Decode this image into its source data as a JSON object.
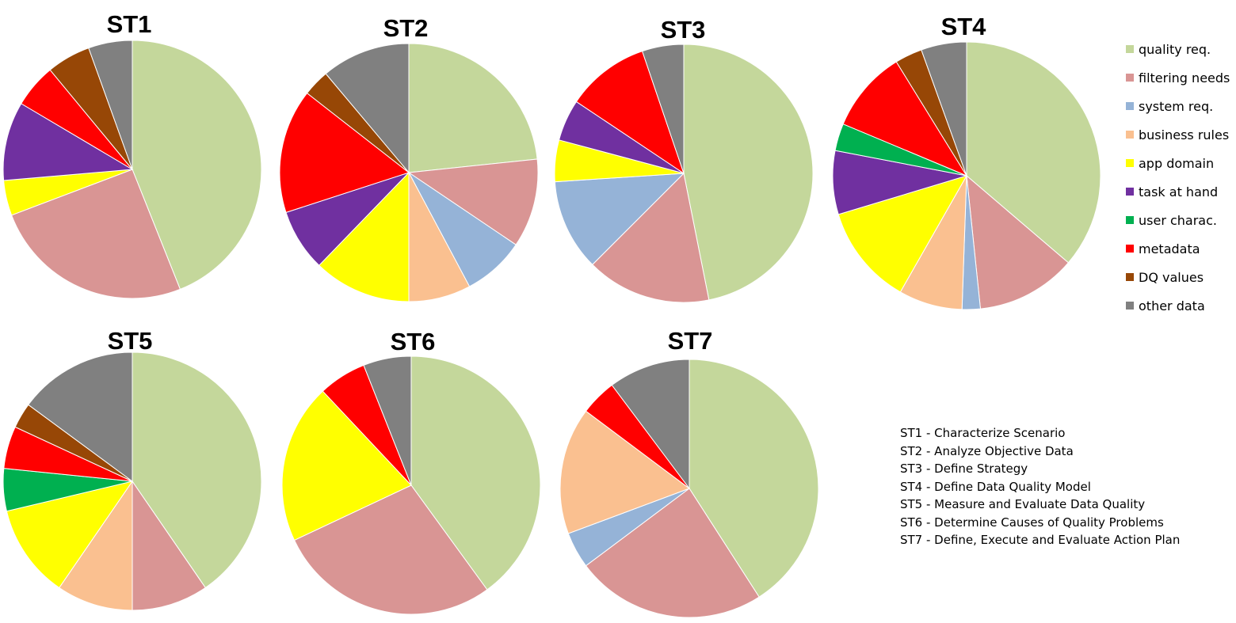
{
  "chart_data": {
    "type": "pie",
    "categories": [
      "quality req.",
      "filtering needs",
      "system req.",
      "business rules",
      "app domain",
      "task at hand",
      "user charac.",
      "metadata",
      "DQ values",
      "other data"
    ],
    "colors": [
      "#c4d79b",
      "#d99594",
      "#95b3d7",
      "#fac090",
      "#ffff00",
      "#7030a0",
      "#00b050",
      "#ff0000",
      "#974706",
      "#808080"
    ],
    "charts": [
      {
        "title": "ST1",
        "values": [
          40,
          23,
          0,
          0,
          4,
          9,
          0,
          5,
          5,
          5
        ]
      },
      {
        "title": "ST2",
        "values": [
          21,
          10,
          7,
          7,
          11,
          7,
          0,
          14,
          3,
          10
        ]
      },
      {
        "title": "ST3",
        "values": [
          45,
          15,
          11,
          0,
          5,
          5,
          0,
          10,
          0,
          5
        ]
      },
      {
        "title": "ST4",
        "values": [
          33,
          11,
          2,
          7,
          11,
          7,
          3,
          9,
          3,
          5
        ]
      },
      {
        "title": "ST5",
        "values": [
          38,
          9,
          0,
          9,
          11,
          0,
          5,
          5,
          3,
          14
        ]
      },
      {
        "title": "ST6",
        "values": [
          40,
          28,
          0,
          0,
          20,
          0,
          0,
          6,
          0,
          6
        ]
      },
      {
        "title": "ST7",
        "values": [
          36,
          21,
          4,
          14,
          0,
          0,
          0,
          4,
          0,
          9
        ]
      }
    ]
  },
  "legend": {
    "items": [
      {
        "label": "quality req.",
        "color": "#c4d79b"
      },
      {
        "label": "filtering needs",
        "color": "#d99594"
      },
      {
        "label": "system req.",
        "color": "#95b3d7"
      },
      {
        "label": "business rules",
        "color": "#fac090"
      },
      {
        "label": "app domain",
        "color": "#ffff00"
      },
      {
        "label": "task at hand",
        "color": "#7030a0"
      },
      {
        "label": "user charac.",
        "color": "#00b050"
      },
      {
        "label": "metadata",
        "color": "#ff0000"
      },
      {
        "label": "DQ values",
        "color": "#974706"
      },
      {
        "label": "other data",
        "color": "#808080"
      }
    ]
  },
  "notes": [
    "ST1 - Characterize Scenario",
    "ST2 - Analyze Objective Data",
    "ST3 - Define Strategy",
    "ST4 - Define Data Quality Model",
    "ST5 - Measure and Evaluate Data Quality",
    "ST6 - Determine Causes of Quality Problems",
    "ST7 - Define, Execute and Evaluate Action Plan"
  ]
}
